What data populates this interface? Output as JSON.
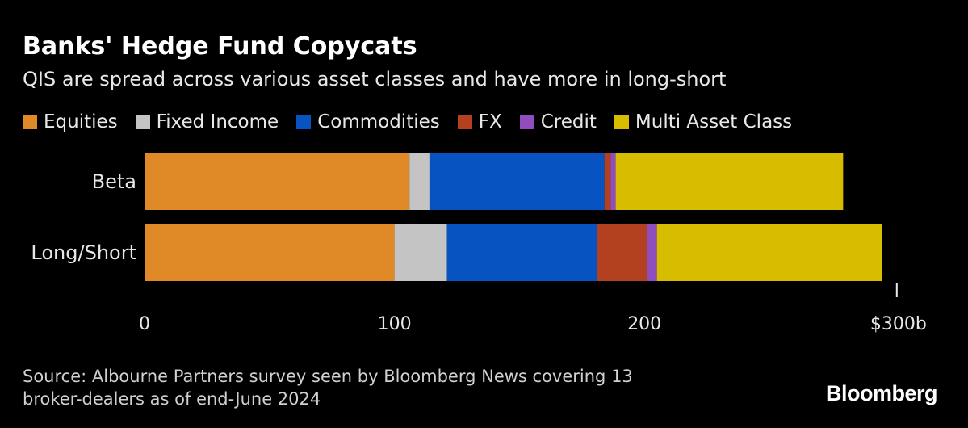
{
  "chart_data": {
    "type": "bar",
    "orientation": "horizontal",
    "stacked": true,
    "title": "Banks' Hedge Fund Copycats",
    "subtitle": "QIS are spread across various asset classes and have more in long-short",
    "categories": [
      "Beta",
      "Long/Short"
    ],
    "series": [
      {
        "name": "Equities",
        "color": "#e08a27",
        "values": [
          106,
          100
        ]
      },
      {
        "name": "Fixed Income",
        "color": "#c4c4c4",
        "values": [
          8,
          21
        ]
      },
      {
        "name": "Commodities",
        "color": "#0753c1",
        "values": [
          70,
          60
        ]
      },
      {
        "name": "FX",
        "color": "#b3401e",
        "values": [
          2.5,
          20
        ]
      },
      {
        "name": "Credit",
        "color": "#8f4dbd",
        "values": [
          2,
          4
        ]
      },
      {
        "name": "Multi Asset Class",
        "color": "#d8bc00",
        "values": [
          91,
          90
        ]
      }
    ],
    "xlim": [
      0,
      300
    ],
    "xticks": [
      0,
      100,
      200,
      300
    ],
    "xtick_labels": [
      "0",
      "100",
      "200",
      "$300b"
    ],
    "xlabel": "",
    "ylabel": "",
    "legend_position": "top"
  },
  "source": {
    "line1": "Source: Albourne Partners survey seen by Bloomberg News covering 13",
    "line2": "broker-dealers as of end-June 2024"
  },
  "brand": "Bloomberg"
}
